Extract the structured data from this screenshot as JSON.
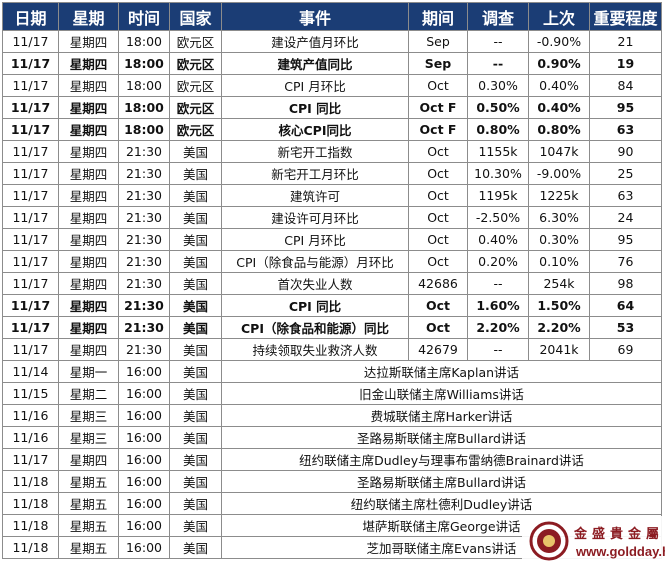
{
  "table": {
    "headers": [
      "日期",
      "星期",
      "时间",
      "国家",
      "事件",
      "期间",
      "调查",
      "上次",
      "重要程度"
    ],
    "rows": [
      {
        "bold": false,
        "cells": [
          "11/17",
          "星期四",
          "18:00",
          "欧元区",
          "建设产值月环比",
          "Sep",
          "--",
          "-0.90%",
          "21"
        ]
      },
      {
        "bold": true,
        "cells": [
          "11/17",
          "星期四",
          "18:00",
          "欧元区",
          "建筑产值同比",
          "Sep",
          "--",
          "0.90%",
          "19"
        ]
      },
      {
        "bold": false,
        "cells": [
          "11/17",
          "星期四",
          "18:00",
          "欧元区",
          "CPI 月环比",
          "Oct",
          "0.30%",
          "0.40%",
          "84"
        ]
      },
      {
        "bold": true,
        "cells": [
          "11/17",
          "星期四",
          "18:00",
          "欧元区",
          "CPI 同比",
          "Oct F",
          "0.50%",
          "0.40%",
          "95"
        ]
      },
      {
        "bold": true,
        "cells": [
          "11/17",
          "星期四",
          "18:00",
          "欧元区",
          "核心CPI同比",
          "Oct F",
          "0.80%",
          "0.80%",
          "63"
        ]
      },
      {
        "bold": false,
        "cells": [
          "11/17",
          "星期四",
          "21:30",
          "美国",
          "新宅开工指数",
          "Oct",
          "1155k",
          "1047k",
          "90"
        ]
      },
      {
        "bold": false,
        "cells": [
          "11/17",
          "星期四",
          "21:30",
          "美国",
          "新宅开工月环比",
          "Oct",
          "10.30%",
          "-9.00%",
          "25"
        ]
      },
      {
        "bold": false,
        "cells": [
          "11/17",
          "星期四",
          "21:30",
          "美国",
          "建筑许可",
          "Oct",
          "1195k",
          "1225k",
          "63"
        ]
      },
      {
        "bold": false,
        "cells": [
          "11/17",
          "星期四",
          "21:30",
          "美国",
          "建设许可月环比",
          "Oct",
          "-2.50%",
          "6.30%",
          "24"
        ]
      },
      {
        "bold": false,
        "cells": [
          "11/17",
          "星期四",
          "21:30",
          "美国",
          "CPI 月环比",
          "Oct",
          "0.40%",
          "0.30%",
          "95"
        ]
      },
      {
        "bold": false,
        "cells": [
          "11/17",
          "星期四",
          "21:30",
          "美国",
          "CPI（除食品与能源）月环比",
          "Oct",
          "0.20%",
          "0.10%",
          "76"
        ]
      },
      {
        "bold": false,
        "cells": [
          "11/17",
          "星期四",
          "21:30",
          "美国",
          "首次失业人数",
          "42686",
          "--",
          "254k",
          "98"
        ]
      },
      {
        "bold": true,
        "cells": [
          "11/17",
          "星期四",
          "21:30",
          "美国",
          "CPI 同比",
          "Oct",
          "1.60%",
          "1.50%",
          "64"
        ]
      },
      {
        "bold": true,
        "cells": [
          "11/17",
          "星期四",
          "21:30",
          "美国",
          "CPI（除食品和能源）同比",
          "Oct",
          "2.20%",
          "2.20%",
          "53"
        ]
      },
      {
        "bold": false,
        "cells": [
          "11/17",
          "星期四",
          "21:30",
          "美国",
          "持续领取失业救济人数",
          "42679",
          "--",
          "2041k",
          "69"
        ]
      }
    ],
    "speeches": [
      {
        "date": "11/14",
        "weekday": "星期一",
        "time": "16:00",
        "country": "美国",
        "event": "达拉斯联储主席Kaplan讲话"
      },
      {
        "date": "11/15",
        "weekday": "星期二",
        "time": "16:00",
        "country": "美国",
        "event": "旧金山联储主席Williams讲话"
      },
      {
        "date": "11/16",
        "weekday": "星期三",
        "time": "16:00",
        "country": "美国",
        "event": "费城联储主席Harker讲话"
      },
      {
        "date": "11/16",
        "weekday": "星期三",
        "time": "16:00",
        "country": "美国",
        "event": "圣路易斯联储主席Bullard讲话"
      },
      {
        "date": "11/17",
        "weekday": "星期四",
        "time": "16:00",
        "country": "美国",
        "event": "纽约联储主席Dudley与理事布雷纳德Brainard讲话"
      },
      {
        "date": "11/18",
        "weekday": "星期五",
        "time": "16:00",
        "country": "美国",
        "event": "圣路易斯联储主席Bullard讲话"
      },
      {
        "date": "11/18",
        "weekday": "星期五",
        "time": "16:00",
        "country": "美国",
        "event": "纽约联储主席杜德利Dudley讲话"
      },
      {
        "date": "11/18",
        "weekday": "星期五",
        "time": "16:00",
        "country": "美国",
        "event": "堪萨斯联储主席George讲话"
      },
      {
        "date": "11/18",
        "weekday": "星期五",
        "time": "16:00",
        "country": "美国",
        "event": "芝加哥联储主席Evans讲话"
      }
    ]
  },
  "watermark": {
    "name": "金盛貴金屬",
    "url": "www.goldday.hk",
    "icon": "goldday-logo-icon",
    "color": "#8c1c22"
  },
  "colors": {
    "header_bg": "#1b3d75",
    "header_text": "#ffffff",
    "border": "#8c8c8c"
  }
}
